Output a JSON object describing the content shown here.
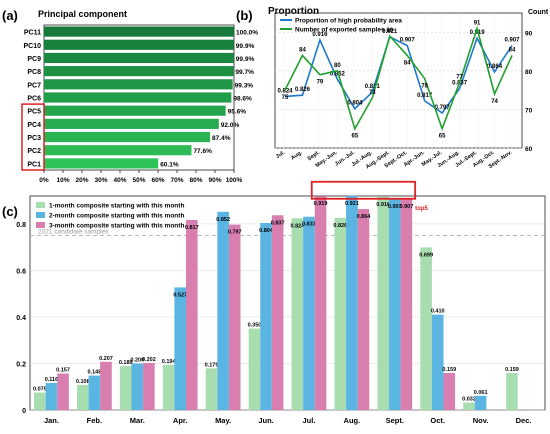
{
  "chart_data": [
    {
      "panel_label": "(a)",
      "type": "bar",
      "orientation": "horizontal",
      "title": "Principal component",
      "categories": [
        "PC11",
        "PC10",
        "PC9",
        "PC8",
        "PC7",
        "PC6",
        "PC5",
        "PC4",
        "PC3",
        "PC2",
        "PC1"
      ],
      "values": [
        100.0,
        99.9,
        99.9,
        99.7,
        99.3,
        98.6,
        95.6,
        92.0,
        87.4,
        77.6,
        60.1
      ],
      "value_labels": [
        "100.0%",
        "99.9%",
        "99.9%",
        "99.7%",
        "99.3%",
        "98.6%",
        "95.6%",
        "92.0%",
        "87.4%",
        "77.6%",
        "60.1%"
      ],
      "xlim": [
        0,
        100
      ],
      "xticks": [
        "0%",
        "10%",
        "20%",
        "30%",
        "40%",
        "50%",
        "60%",
        "70%",
        "80%",
        "90%",
        "100%"
      ],
      "highlighted_categories": [
        "PC5",
        "PC4",
        "PC3",
        "PC2",
        "PC1"
      ],
      "colors": {
        "bars_dark": "#157a3a",
        "bars_light": "#2ec25a",
        "highlight_box": "#e02020"
      }
    },
    {
      "panel_label": "(b)",
      "type": "line",
      "title": "Proportion",
      "y2_title": "Count",
      "x": [
        "Jul.",
        "Aug.",
        "Sept.",
        "May.-Jun.",
        "Jun.-Jul.",
        "Jul.-Aug.",
        "Aug.-Sept.",
        "Sept.-Oct.",
        "Apr.-Jun.",
        "May.-Jul.",
        "Jun.-Aug.",
        "Jul.-Sept.",
        "Aug.-Oct.",
        "Sept.-Nov."
      ],
      "series": [
        {
          "name": "Proportion of high probability area",
          "axis": "left",
          "color": "#1f78c8",
          "values": [
            0.824,
            0.826,
            0.916,
            0.852,
            0.804,
            0.831,
            0.921,
            0.907,
            0.817,
            0.797,
            0.837,
            0.919,
            0.864,
            0.907
          ],
          "labels": [
            "0.824",
            "0.826",
            "0.916",
            "0.852",
            "0.804",
            "0.831",
            "0.921",
            "0.907",
            "0.817",
            "0.797",
            "0.837",
            "0.919",
            "0.864",
            "0.907"
          ]
        },
        {
          "name": "Number of exported samples",
          "axis": "right",
          "color": "#22a030",
          "values": [
            75,
            84,
            79,
            80,
            65,
            73,
            89,
            84,
            78,
            65,
            77,
            91,
            74,
            84
          ],
          "labels": [
            "75",
            "84",
            "79",
            "80",
            "65",
            "73",
            "89",
            "84",
            "78",
            "65",
            "77",
            "91",
            "74",
            "84"
          ]
        }
      ],
      "ylim": [
        0.74,
        0.96
      ],
      "y2lim": [
        60,
        95
      ],
      "y2ticks": [
        "60",
        "70",
        "80",
        "90"
      ],
      "legend": "top-left",
      "grid": true
    },
    {
      "panel_label": "(c)",
      "type": "bar",
      "categories": [
        "Jan.",
        "Feb.",
        "Mar.",
        "Apr.",
        "May.",
        "Jun.",
        "Jul.",
        "Aug.",
        "Sept.",
        "Oct.",
        "Nov.",
        "Dec."
      ],
      "series": [
        {
          "name": "1-month composite starting with this month",
          "color": "#a8ddb0",
          "values": [
            0.075,
            0.108,
            0.189,
            0.194,
            0.179,
            0.35,
            0.824,
            0.826,
            0.916,
            0.699,
            0.032,
            0.159
          ]
        },
        {
          "name": "2-month composite starting with this month",
          "color": "#5bb5e3",
          "values": [
            0.116,
            0.148,
            0.2,
            0.527,
            0.852,
            0.804,
            0.831,
            0.921,
            0.907,
            0.41,
            0.061,
            null
          ]
        },
        {
          "name": "3-month composite starting with this month",
          "color": "#d97fb0",
          "values": [
            0.157,
            0.207,
            0.202,
            0.817,
            0.797,
            0.837,
            0.919,
            0.864,
            0.907,
            0.159,
            null,
            null
          ]
        }
      ],
      "labels": [
        [
          "0.075",
          "0.108",
          "0.189",
          "0.194",
          "0.179",
          "0.350",
          "0.824",
          "0.826",
          "0.916",
          "0.699",
          "0.032",
          "0.159"
        ],
        [
          "0.116",
          "0.148",
          "0.200",
          "0.527",
          "0.852",
          "0.804",
          "0.831",
          "0.921",
          "0.907",
          "0.410",
          "0.061",
          ""
        ],
        [
          "0.157",
          "0.207",
          "0.202",
          "0.817",
          "0.797",
          "0.837",
          "0.919",
          "0.864",
          "0.907",
          "0.159",
          "",
          ""
        ]
      ],
      "ylim": [
        0,
        0.92
      ],
      "yticks": [
        "0",
        "0.2",
        "0.4",
        "0.6",
        "0.8"
      ],
      "reference_line": {
        "label": "2021 candidate samples",
        "value": 0.75
      },
      "annotation": {
        "label": "top5",
        "color": "#e02020"
      },
      "legend": "top-left",
      "grid": true
    }
  ]
}
